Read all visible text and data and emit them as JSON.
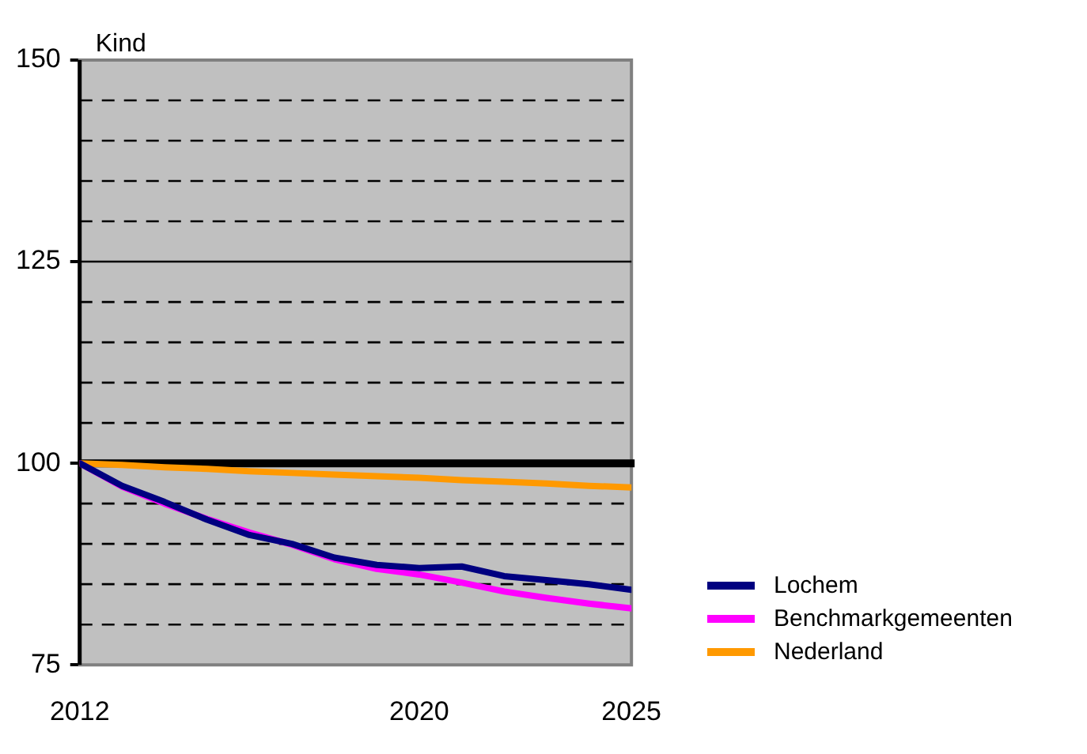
{
  "chart_data": {
    "type": "line",
    "ylabel": "Kind",
    "x": [
      2012,
      2013,
      2014,
      2015,
      2016,
      2017,
      2018,
      2019,
      2020,
      2021,
      2022,
      2023,
      2024,
      2025
    ],
    "xlim": [
      2012,
      2025
    ],
    "xticks": [
      2012,
      2020,
      2025
    ],
    "ylim": [
      75,
      150
    ],
    "yticks": [
      75,
      {
        "value": 80,
        "label": null
      },
      {
        "value": 85,
        "label": null
      },
      {
        "value": 90,
        "label": null
      },
      {
        "value": 95,
        "label": null
      },
      100,
      {
        "value": 105,
        "label": null
      },
      {
        "value": 110,
        "label": null
      },
      {
        "value": 115,
        "label": null
      },
      {
        "value": 120,
        "label": null
      },
      125,
      {
        "value": 130,
        "label": null
      },
      {
        "value": 135,
        "label": null
      },
      {
        "value": 140,
        "label": null
      },
      {
        "value": 145,
        "label": null
      },
      150
    ],
    "grid": "y",
    "legend": "right",
    "marker": "none",
    "ref_lines": [
      {
        "axis": "y",
        "value": 100,
        "color": "#000000"
      },
      {
        "axis": "y",
        "value": 125
      }
    ],
    "series": [
      {
        "name": "Lochem",
        "color": "#000080",
        "values": [
          100,
          97.2,
          95.2,
          93.0,
          91.1,
          90.0,
          88.3,
          87.4,
          87.0,
          87.2,
          86.0,
          85.5,
          85.0,
          84.3
        ]
      },
      {
        "name": "Benchmarkgemeenten",
        "color": "#ff00ff",
        "values": [
          100,
          97.1,
          95.0,
          93.1,
          91.4,
          89.9,
          88.1,
          86.9,
          86.2,
          85.2,
          84.1,
          83.3,
          82.6,
          82.0
        ]
      },
      {
        "name": "Nederland",
        "color": "#ff9900",
        "values": [
          100,
          99.8,
          99.5,
          99.3,
          99.0,
          98.8,
          98.6,
          98.4,
          98.2,
          97.9,
          97.7,
          97.5,
          97.2,
          97.0
        ]
      }
    ]
  }
}
